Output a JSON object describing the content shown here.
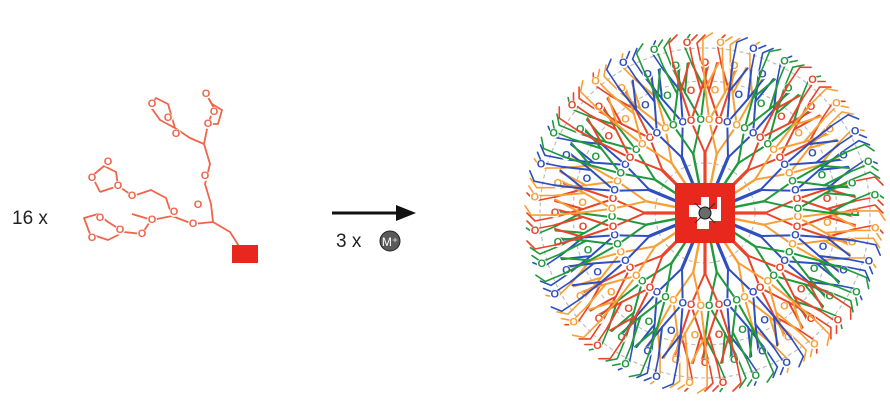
{
  "reactant": {
    "multiplier": "16 x",
    "color": "#f0644a",
    "core_color": "#e8281c",
    "atom_label": "O"
  },
  "arrow": {
    "reagent_count": "3 x",
    "metal_label": "M⁺",
    "color": "#111111"
  },
  "product": {
    "atom_label": "O",
    "branch_colors": [
      "#e8452a",
      "#f7a036",
      "#2f4fbf",
      "#1f9a3c"
    ],
    "link_color": "#bdbdbd",
    "core_color": "#e8281c"
  }
}
